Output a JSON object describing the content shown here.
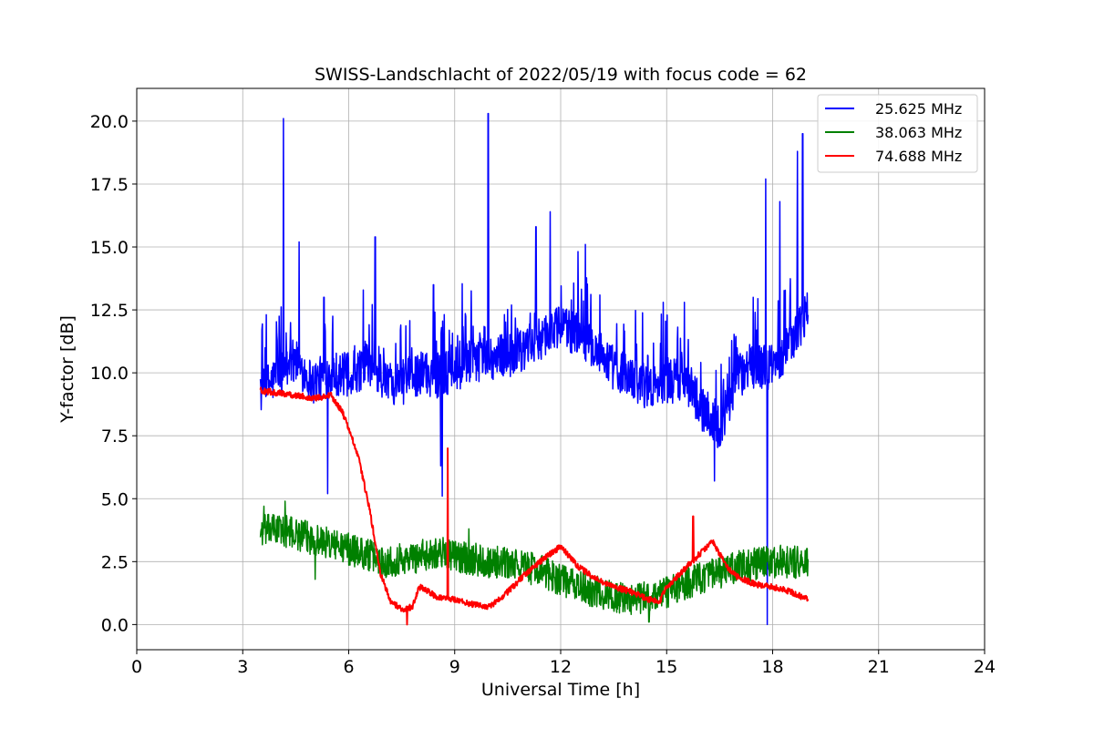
{
  "chart_data": {
    "type": "line",
    "title": "SWISS-Landschlacht of 2022/05/19 with focus code = 62",
    "xlabel": "Universal Time [h]",
    "ylabel": "Y-factor [dB]",
    "xlim": [
      0,
      24
    ],
    "ylim": [
      -1,
      21.3
    ],
    "xticks": [
      0,
      3,
      6,
      9,
      12,
      15,
      18,
      21,
      24
    ],
    "xtick_labels": [
      "0",
      "3",
      "6",
      "9",
      "12",
      "15",
      "18",
      "21",
      "24"
    ],
    "yticks": [
      0,
      2.5,
      5,
      7.5,
      10,
      12.5,
      15,
      17.5,
      20
    ],
    "ytick_labels": [
      "0.0",
      "2.5",
      "5.0",
      "7.5",
      "10.0",
      "12.5",
      "15.0",
      "17.5",
      "20.0"
    ],
    "grid": true,
    "legend_position": "top-right",
    "series": [
      {
        "name": "25.625 MHz",
        "color": "#0000ff",
        "noise": 0.9,
        "x": [
          3.5,
          3.7,
          4.0,
          4.5,
          5.0,
          5.5,
          6.0,
          6.5,
          7.0,
          7.5,
          8.0,
          8.5,
          9.0,
          9.5,
          10.0,
          10.5,
          11.0,
          11.5,
          12.0,
          12.5,
          13.0,
          13.5,
          14.0,
          14.5,
          15.0,
          15.5,
          16.0,
          16.5,
          17.0,
          17.5,
          18.0,
          18.5,
          19.0
        ],
        "y": [
          9.2,
          9.5,
          9.9,
          10.5,
          9.6,
          10.0,
          9.9,
          10.3,
          9.7,
          9.6,
          10.0,
          9.9,
          10.1,
          10.5,
          10.6,
          10.7,
          10.9,
          11.5,
          11.8,
          11.6,
          11.0,
          10.2,
          9.8,
          9.4,
          9.6,
          9.8,
          8.6,
          7.8,
          9.8,
          10.3,
          10.2,
          11.2,
          12.5
        ],
        "spikes": [
          [
            4.15,
            20.1
          ],
          [
            4.6,
            15.2
          ],
          [
            5.3,
            13.0
          ],
          [
            5.4,
            5.2
          ],
          [
            6.75,
            15.4
          ],
          [
            8.4,
            13.5
          ],
          [
            8.6,
            6.3
          ],
          [
            8.65,
            5.1
          ],
          [
            9.95,
            20.3
          ],
          [
            11.3,
            15.8
          ],
          [
            11.7,
            16.4
          ],
          [
            12.7,
            15.1
          ],
          [
            14.9,
            12.8
          ],
          [
            15.5,
            12.8
          ],
          [
            16.35,
            5.7
          ],
          [
            17.45,
            13.0
          ],
          [
            17.8,
            17.7
          ],
          [
            17.85,
            0.0
          ],
          [
            18.2,
            16.8
          ],
          [
            18.7,
            18.8
          ],
          [
            18.85,
            19.5
          ],
          [
            19.0,
            12.3
          ]
        ]
      },
      {
        "name": "38.063 MHz",
        "color": "#008000",
        "noise": 0.65,
        "x": [
          3.5,
          4.0,
          4.5,
          5.0,
          5.5,
          6.0,
          6.5,
          7.0,
          7.5,
          8.0,
          8.5,
          9.0,
          9.5,
          10.0,
          10.5,
          11.0,
          11.5,
          12.0,
          12.5,
          13.0,
          13.5,
          14.0,
          14.5,
          15.0,
          15.5,
          16.0,
          16.5,
          17.0,
          17.5,
          18.0,
          18.5,
          19.0
        ],
        "y": [
          3.7,
          3.8,
          3.6,
          3.4,
          3.2,
          3.0,
          2.8,
          2.5,
          2.6,
          2.7,
          2.9,
          2.7,
          2.6,
          2.5,
          2.4,
          2.3,
          2.1,
          1.8,
          1.5,
          1.3,
          1.1,
          1.0,
          1.1,
          1.3,
          1.6,
          1.9,
          2.0,
          2.3,
          2.4,
          2.5,
          2.5,
          2.4
        ],
        "spikes": [
          [
            3.6,
            4.7
          ],
          [
            4.2,
            4.9
          ],
          [
            5.05,
            1.8
          ],
          [
            9.4,
            3.8
          ],
          [
            14.5,
            0.1
          ]
        ]
      },
      {
        "name": "74.688 MHz",
        "color": "#ff0000",
        "noise": 0.12,
        "x": [
          3.5,
          4.0,
          4.5,
          5.0,
          5.5,
          5.8,
          6.0,
          6.3,
          6.6,
          6.9,
          7.2,
          7.5,
          7.8,
          8.0,
          8.5,
          9.0,
          9.5,
          10.0,
          10.5,
          11.0,
          11.5,
          12.0,
          12.5,
          13.0,
          13.5,
          14.0,
          14.5,
          14.8,
          15.0,
          15.5,
          16.0,
          16.3,
          16.7,
          17.0,
          17.5,
          18.0,
          18.5,
          19.0
        ],
        "y": [
          9.3,
          9.2,
          9.1,
          9.0,
          9.1,
          8.5,
          7.8,
          6.5,
          4.5,
          2.0,
          0.9,
          0.6,
          0.7,
          1.5,
          1.1,
          1.0,
          0.8,
          0.7,
          1.3,
          2.0,
          2.6,
          3.1,
          2.3,
          1.8,
          1.5,
          1.3,
          1.0,
          0.9,
          1.5,
          2.2,
          2.9,
          3.3,
          2.3,
          1.9,
          1.6,
          1.5,
          1.3,
          1.0
        ],
        "spikes": [
          [
            7.65,
            0.0
          ],
          [
            8.8,
            7.0
          ],
          [
            15.75,
            4.3
          ]
        ]
      }
    ]
  }
}
